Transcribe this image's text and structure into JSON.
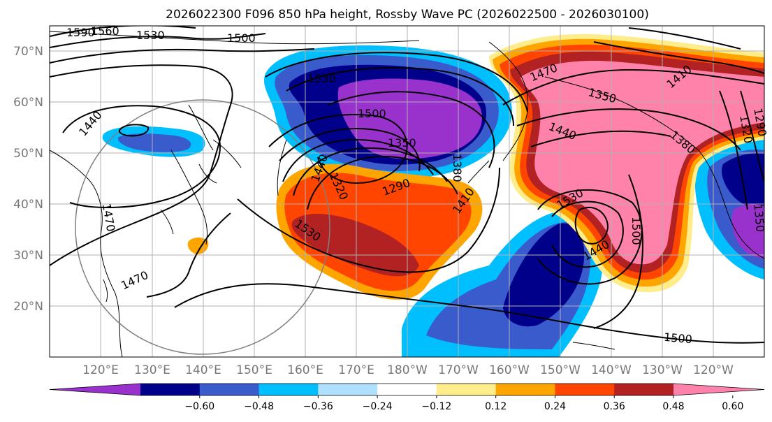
{
  "title": "2026022300 F096 850 hPa height, Rossby Wave PC (2026022500 - 2026030100)",
  "lat_labels": [
    "70°N",
    "60°N",
    "50°N",
    "40°N",
    "30°N",
    "20°N"
  ],
  "lon_labels": [
    "120°E",
    "130°E",
    "140°E",
    "150°E",
    "160°E",
    "170°E",
    "180°W",
    "170°W",
    "160°W",
    "150°W",
    "140°W",
    "130°W",
    "120°W"
  ],
  "colorbar": {
    "colors": [
      "#9932cc",
      "#00008b",
      "#3a5bcc",
      "#00bfff",
      "#b0e0ff",
      "#ffffff",
      "#ffec8b",
      "#ffa500",
      "#ff4500",
      "#b22222",
      "#ff82ab"
    ],
    "tick_labels": [
      "−0.60",
      "−0.48",
      "−0.36",
      "−0.24",
      "−0.12",
      "0.12",
      "0.24",
      "0.36",
      "0.48",
      "0.60"
    ]
  },
  "contour_labels": [
    "1590",
    "1560",
    "1530",
    "1500",
    "1530",
    "1440",
    "1500",
    "1350",
    "1320",
    "1290",
    "1410",
    "1440",
    "1380",
    "1470",
    "1410",
    "1350",
    "1440",
    "1320",
    "1290",
    "1380",
    "1530",
    "1500",
    "1440",
    "1470",
    "1530",
    "1470",
    "1500",
    "1350"
  ],
  "shading_legend_colors": {
    "strong_negative": "#9932cc",
    "strong_positive": "#ff82ab"
  }
}
